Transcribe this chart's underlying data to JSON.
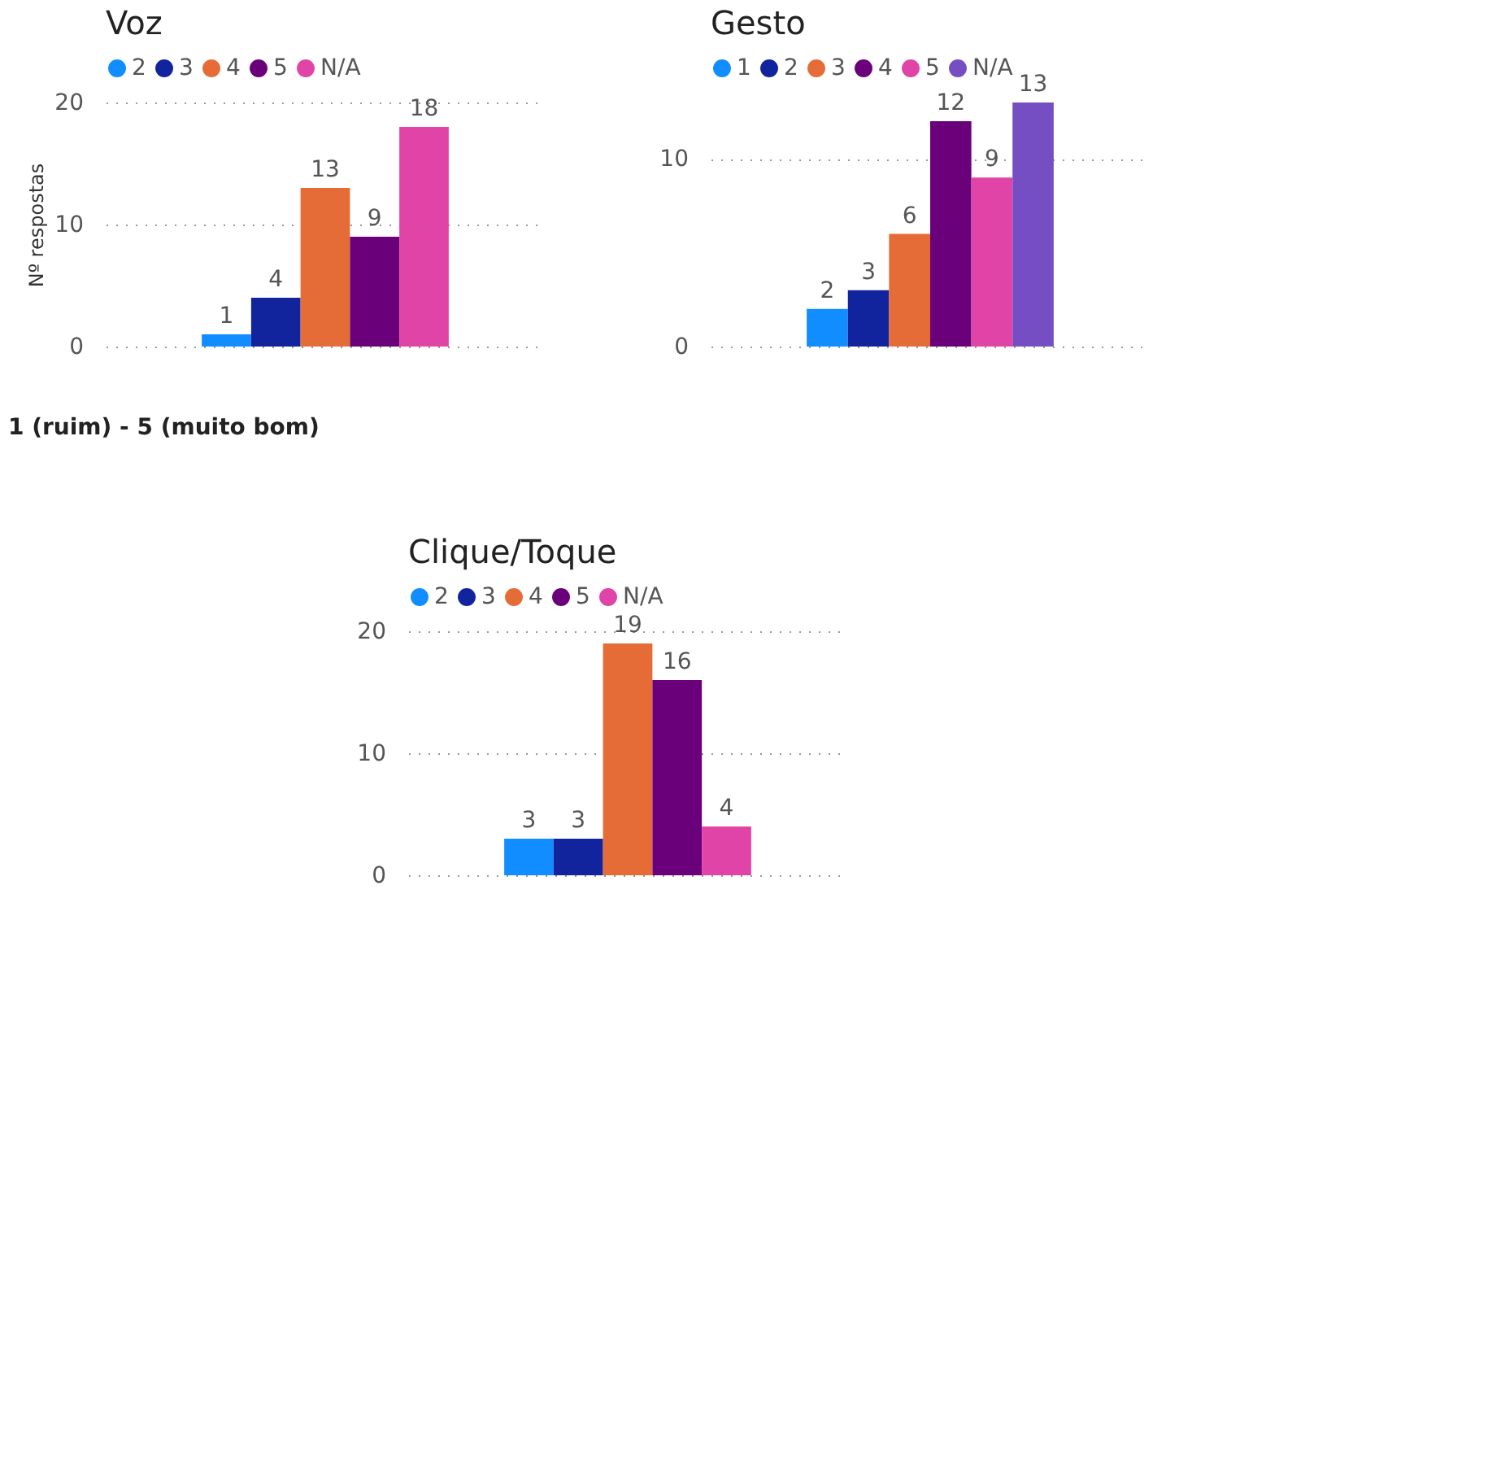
{
  "chart_data": [
    {
      "type": "bar",
      "title": "Voz",
      "ylabel": "Nº respostas",
      "categories": [
        null
      ],
      "legend": "top left",
      "grid": "y",
      "data_labels": true,
      "ylim": [
        0,
        20
      ],
      "yticks": [
        0,
        10,
        20
      ],
      "annotations": [
        "1 (ruim) - 5 (muito bom)"
      ],
      "series": [
        {
          "name": "2",
          "color": "#118dff",
          "values": [
            1
          ]
        },
        {
          "name": "3",
          "color": "#12239e",
          "values": [
            4
          ]
        },
        {
          "name": "4",
          "color": "#e66c37",
          "values": [
            13
          ]
        },
        {
          "name": "5",
          "color": "#6b007b",
          "values": [
            9
          ]
        },
        {
          "name": "N/A",
          "color": "#e044a7",
          "values": [
            18
          ]
        }
      ]
    },
    {
      "type": "bar",
      "title": "Gesto",
      "categories": [
        null
      ],
      "legend": "top left",
      "grid": "y",
      "data_labels": true,
      "ylim": [
        0,
        13
      ],
      "yticks": [
        0,
        10
      ],
      "series": [
        {
          "name": "1",
          "color": "#118dff",
          "values": [
            2
          ]
        },
        {
          "name": "2",
          "color": "#12239e",
          "values": [
            3
          ]
        },
        {
          "name": "3",
          "color": "#e66c37",
          "values": [
            6
          ]
        },
        {
          "name": "4",
          "color": "#6b007b",
          "values": [
            12
          ]
        },
        {
          "name": "5",
          "color": "#e044a7",
          "values": [
            9
          ]
        },
        {
          "name": "N/A",
          "color": "#744ec2",
          "values": [
            13
          ]
        }
      ]
    },
    {
      "type": "bar",
      "title": "Clique/Toque",
      "categories": [
        null
      ],
      "legend": "top left",
      "grid": "y",
      "data_labels": true,
      "ylim": [
        0,
        20
      ],
      "yticks": [
        0,
        10,
        20
      ],
      "series": [
        {
          "name": "2",
          "color": "#118dff",
          "values": [
            3
          ]
        },
        {
          "name": "3",
          "color": "#12239e",
          "values": [
            3
          ]
        },
        {
          "name": "4",
          "color": "#e66c37",
          "values": [
            19
          ]
        },
        {
          "name": "5",
          "color": "#6b007b",
          "values": [
            16
          ]
        },
        {
          "name": "N/A",
          "color": "#e044a7",
          "values": [
            4
          ]
        }
      ]
    }
  ]
}
